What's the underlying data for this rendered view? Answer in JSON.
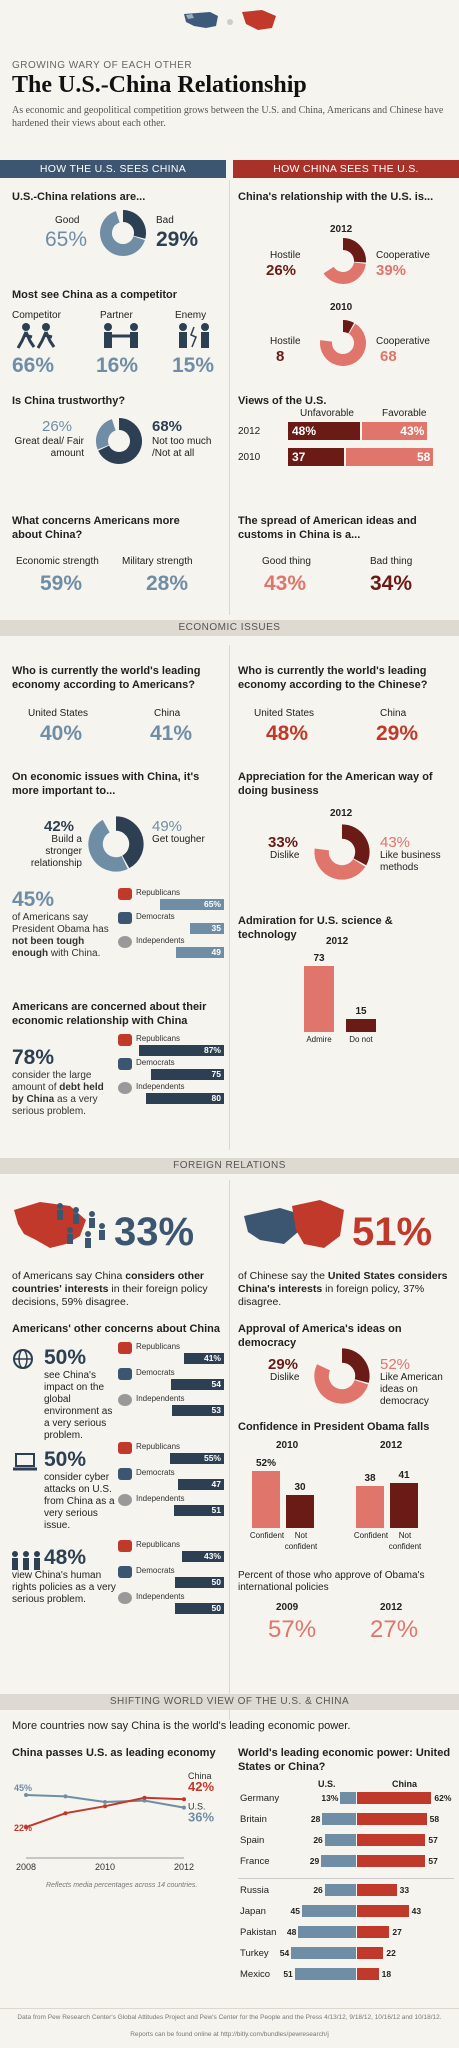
{
  "header": {
    "kicker": "GROWING WARY OF EACH OTHER",
    "title": "The U.S.-China Relationship",
    "intro": "As economic and geopolitical competition grows between the U.S. and China, Americans and Chinese have hardened their views about each other."
  },
  "colors": {
    "us_blue": "#6f8ea6",
    "us_dark": "#2d3f52",
    "cn_red": "#c0392b",
    "cn_dark": "#6a1b16",
    "cn_pink": "#e0756c"
  },
  "left_header": "HOW THE U.S. SEES CHINA",
  "right_header": "HOW CHINA SEES THE U.S.",
  "us": {
    "relations": {
      "q": "U.S.-China relations are...",
      "good_label": "Good",
      "good": "65%",
      "bad_label": "Bad",
      "bad": "29%",
      "good_val": 65,
      "bad_val": 29
    },
    "competitor": {
      "q": "Most see China as a competitor",
      "items": [
        {
          "label": "Competitor",
          "value": "66%"
        },
        {
          "label": "Partner",
          "value": "16%"
        },
        {
          "label": "Enemy",
          "value": "15%"
        }
      ]
    },
    "trust": {
      "q": "Is China trustworthy?",
      "a_val": "26%",
      "a_label": "Great deal/ Fair amount",
      "b_val": "68%",
      "b_label": "Not too much /Not at all",
      "a_num": 26,
      "b_num": 68
    },
    "concerns": {
      "q": "What concerns Americans more about China?",
      "a_label": "Economic strength",
      "a_val": "59%",
      "b_label": "Military strength",
      "b_val": "28%"
    }
  },
  "cn": {
    "relationship": {
      "q": "China's relationship with the U.S. is...",
      "y2012": {
        "year": "2012",
        "hostile_label": "Hostile",
        "hostile": "26%",
        "coop_label": "Cooperative",
        "coop": "39%",
        "hostile_val": 26,
        "coop_val": 39
      },
      "y2010": {
        "year": "2010",
        "hostile_label": "Hostile",
        "hostile": "8",
        "coop_label": "Cooperative",
        "coop": "68",
        "hostile_val": 8,
        "coop_val": 68
      }
    },
    "views": {
      "q": "Views of the U.S.",
      "unfav_label": "Unfavorable",
      "fav_label": "Favorable",
      "rows": [
        {
          "year": "2012",
          "unfav": "48%",
          "fav": "43%",
          "u": 48,
          "f": 43
        },
        {
          "year": "2010",
          "unfav": "37",
          "fav": "58",
          "u": 37,
          "f": 58
        }
      ]
    },
    "spread": {
      "q": "The spread of American ideas and customs in China is a...",
      "a_label": "Good thing",
      "a_val": "43%",
      "b_label": "Bad thing",
      "b_val": "34%"
    }
  },
  "econ": {
    "title": "ECONOMIC ISSUES",
    "us_leading": {
      "q": "Who is currently the world's leading economy according to Americans?",
      "a_label": "United States",
      "a_val": "40%",
      "b_label": "China",
      "b_val": "41%"
    },
    "cn_leading": {
      "q": "Who is currently the world's leading economy according to the Chinese?",
      "a_label": "United States",
      "a_val": "48%",
      "b_label": "China",
      "b_val": "29%"
    },
    "important": {
      "q": "On economic issues with China, it's more important to...",
      "a_val": "42%",
      "a_label": "Build a stronger relationship",
      "b_val": "49%",
      "b_label": "Get tougher",
      "a_num": 42,
      "b_num": 49
    },
    "obama": {
      "val": "45%",
      "text_pre": "of Americans say President Obama has",
      "text_bold": "not been tough enough",
      "text_post": "with China.",
      "parties": [
        {
          "label": "Republicans",
          "value": "65%",
          "v": 65
        },
        {
          "label": "Democrats",
          "value": "35",
          "v": 35
        },
        {
          "label": "Independents",
          "value": "49",
          "v": 49
        }
      ]
    },
    "concern": {
      "q": "Americans are concerned about their economic relationship with China",
      "val": "78%",
      "text_pre": "consider the large amount of",
      "text_bold": "debt held by China",
      "text_post": "as a very serious problem.",
      "parties": [
        {
          "label": "Republicans",
          "value": "87%",
          "v": 87
        },
        {
          "label": "Democrats",
          "value": "75",
          "v": 75
        },
        {
          "label": "Independents",
          "value": "80",
          "v": 80
        }
      ]
    },
    "appreciation": {
      "q": "Appreciation for the American way of doing business",
      "year": "2012",
      "a_val": "33%",
      "a_label": "Dislike",
      "b_val": "43%",
      "b_label": "Like business methods",
      "a_num": 33,
      "b_num": 43
    },
    "science": {
      "q": "Admiration for U.S. science & technology",
      "year": "2012",
      "admire_label": "Admire",
      "admire": "73",
      "donot_label": "Do not",
      "donot": "15",
      "admire_v": 73,
      "donot_v": 15
    }
  },
  "foreign": {
    "title": "FOREIGN RELATIONS",
    "us_big": "33%",
    "us_pre": "of Americans say China",
    "us_bold": "considers other countries' interests",
    "us_post": "in their foreign policy decisions, 59% disagree.",
    "cn_big": "51%",
    "cn_pre": "of Chinese say the",
    "cn_bold": "United States considers China's interests",
    "cn_post": "in foreign policy, 37% disagree.",
    "other_q": "Americans' other concerns about China",
    "concerns": [
      {
        "val": "50%",
        "text": "see China's impact on the global environment as a very serious problem.",
        "icon": "globe-icon",
        "parties": [
          {
            "label": "Republicans",
            "value": "41%",
            "v": 41
          },
          {
            "label": "Democrats",
            "value": "54",
            "v": 54
          },
          {
            "label": "Independents",
            "value": "53",
            "v": 53
          }
        ]
      },
      {
        "val": "50%",
        "text": "consider cyber attacks on U.S. from China as a very serious issue.",
        "icon": "laptop-icon",
        "parties": [
          {
            "label": "Republicans",
            "value": "55%",
            "v": 55
          },
          {
            "label": "Democrats",
            "value": "47",
            "v": 47
          },
          {
            "label": "Independents",
            "value": "51",
            "v": 51
          }
        ]
      },
      {
        "val": "48%",
        "text": "view China's human rights policies as a very serious problem.",
        "icon": "people-icon",
        "parties": [
          {
            "label": "Republicans",
            "value": "43%",
            "v": 43
          },
          {
            "label": "Democrats",
            "value": "50",
            "v": 50
          },
          {
            "label": "Independents",
            "value": "50",
            "v": 50
          }
        ]
      }
    ],
    "democracy": {
      "q": "Approval of America's ideas on democracy",
      "a_val": "29%",
      "a_label": "Dislike",
      "b_val": "52%",
      "b_label": "Like American ideas on democracy",
      "a_num": 29,
      "b_num": 52
    },
    "obama_conf": {
      "q": "Confidence in President Obama falls",
      "years": [
        {
          "year": "2010",
          "conf": "52%",
          "not": "30",
          "c": 52,
          "n": 30
        },
        {
          "year": "2012",
          "conf": "38",
          "not": "41",
          "c": 38,
          "n": 41
        }
      ],
      "conf_label": "Confident",
      "not_label": "Not confident"
    },
    "approve": {
      "q": "Percent of those who approve of Obama's international policies",
      "a_year": "2009",
      "a_val": "57%",
      "b_year": "2012",
      "b_val": "27%"
    }
  },
  "shift": {
    "title": "SHIFTING WORLD VIEW OF THE U.S. & CHINA",
    "subtitle": "More countries now say China is the world's leading economic power.",
    "line_title": "China passes U.S. as leading economy",
    "line_note": "Reflects media percentages across 14 countries.",
    "country_title": "World's leading economic power: United States or China?",
    "col_us": "U.S.",
    "col_cn": "China"
  },
  "chart_data": [
    {
      "type": "line",
      "title": "China passes U.S. as leading economy",
      "x": [
        2008,
        2009,
        2010,
        2011,
        2012
      ],
      "xticks": [
        "2008",
        "2010",
        "2012"
      ],
      "series": [
        {
          "name": "U.S.",
          "values": [
            45,
            44,
            40,
            41,
            36
          ],
          "start_label": "45%",
          "end_label": "36%"
        },
        {
          "name": "China",
          "values": [
            22,
            32,
            37,
            43,
            42
          ],
          "start_label": "22%",
          "end_label": "42%"
        }
      ],
      "ylim": [
        0,
        60
      ]
    },
    {
      "type": "bar",
      "title": "World's leading economic power: United States or China?",
      "categories": [
        "Germany",
        "Britain",
        "Spain",
        "France",
        "Russia",
        "Japan",
        "Pakistan",
        "Turkey",
        "Mexico"
      ],
      "series": [
        {
          "name": "U.S.",
          "values": [
            13,
            28,
            26,
            29,
            26,
            45,
            48,
            54,
            51
          ],
          "labels": [
            "13%",
            "28",
            "26",
            "29",
            "26",
            "45",
            "48",
            "54",
            "51"
          ]
        },
        {
          "name": "China",
          "values": [
            62,
            58,
            57,
            57,
            33,
            43,
            27,
            22,
            18
          ],
          "labels": [
            "62%",
            "58",
            "57",
            "57",
            "33",
            "43",
            "27",
            "22",
            "18"
          ]
        }
      ]
    }
  ],
  "footer": {
    "source": "Data from Pew Research Center's Global Attitudes Project and Pew's Center for the People and the Press 4/13/12, 9/18/12, 10/16/12 and 10/18/12.",
    "link": "Reports can be found online at http://bitly.com/bundles/pewresearch/j"
  }
}
